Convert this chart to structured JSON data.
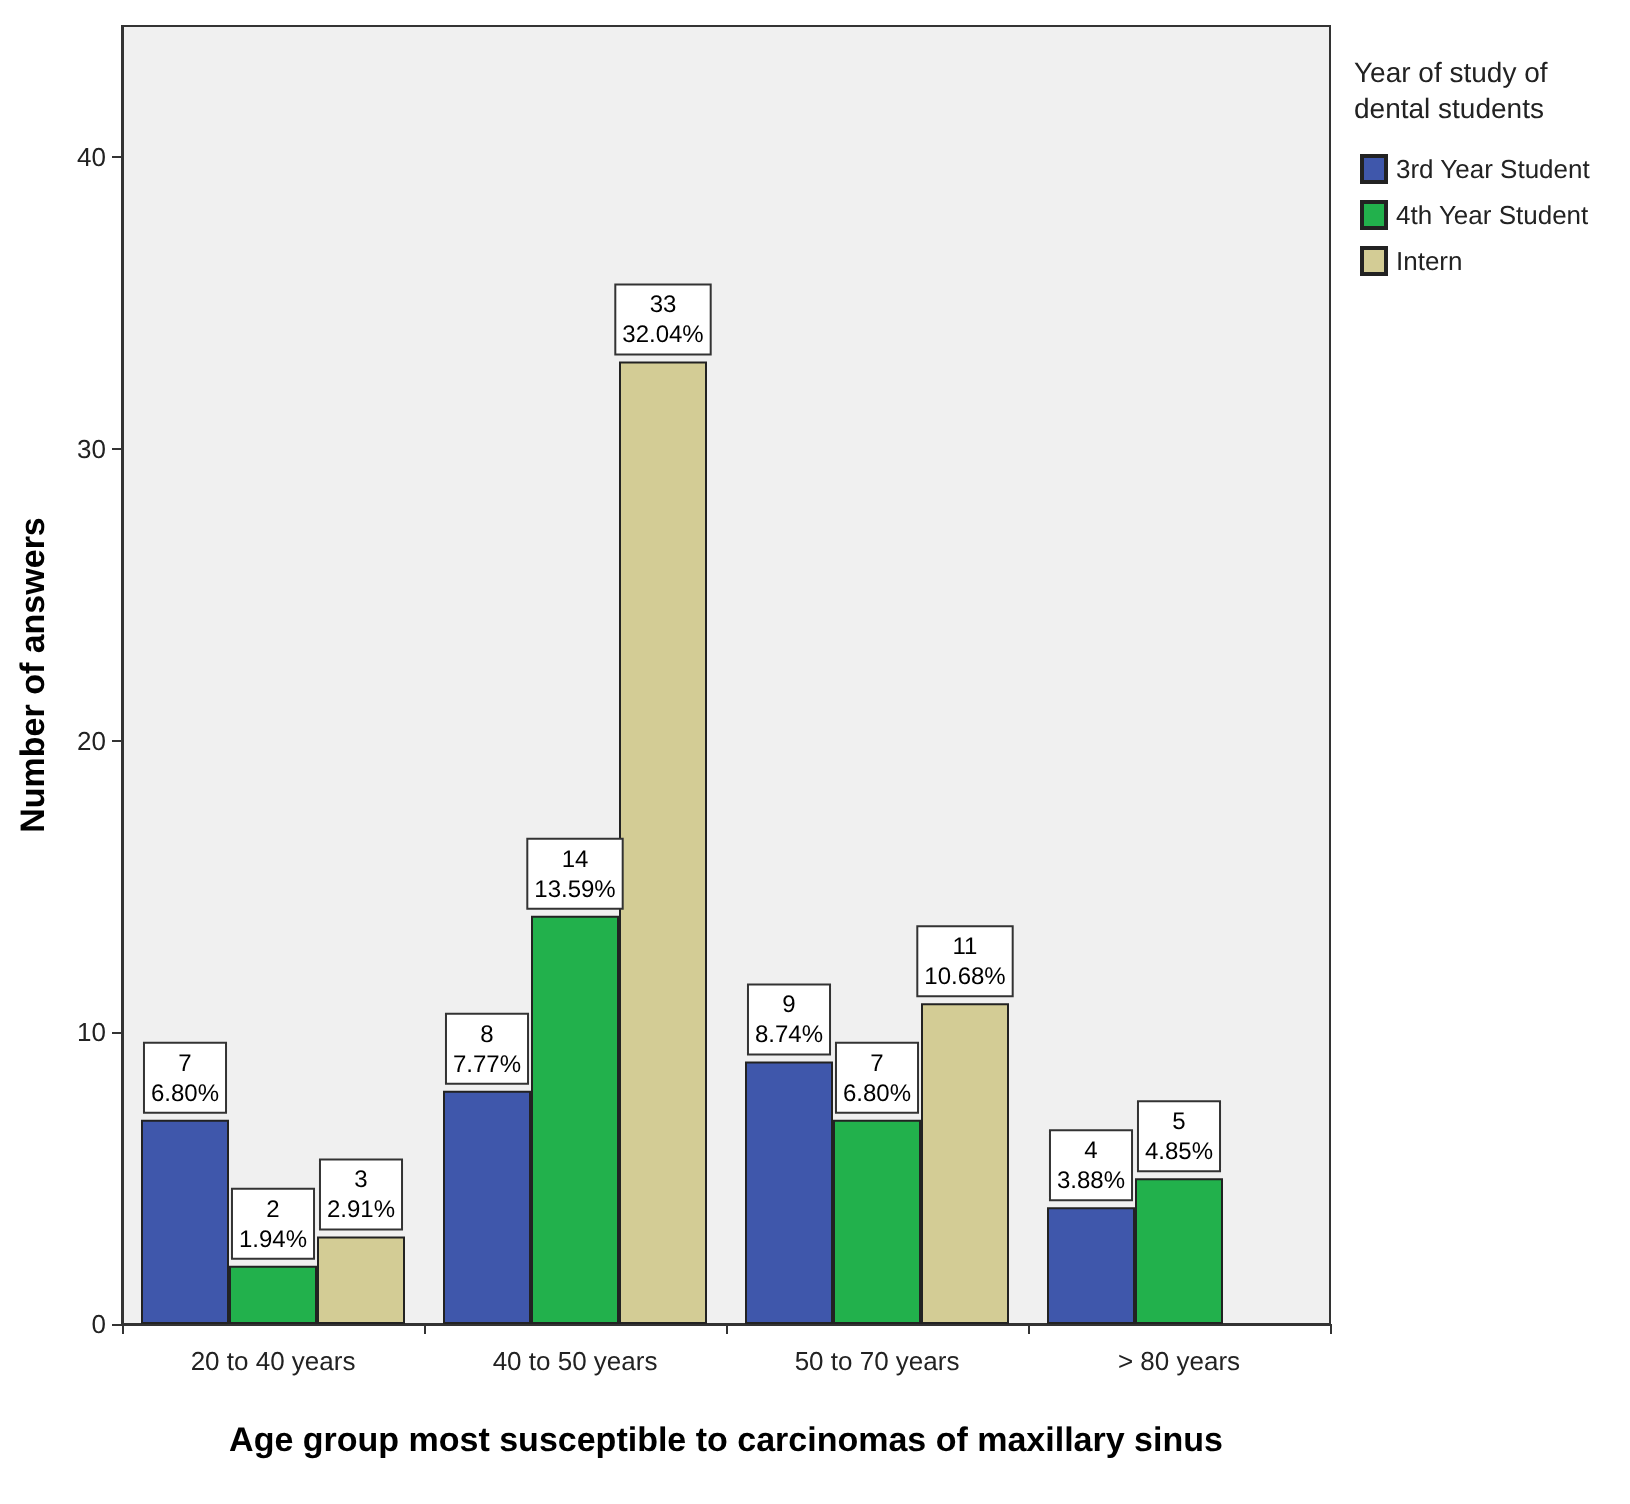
{
  "chart_data": {
    "type": "bar",
    "xlabel": "Age group most susceptible to carcinomas of maxillary sinus",
    "ylabel": "Number of answers",
    "legend_title": "Year of study of dental students",
    "categories": [
      "20 to 40 years",
      "40 to 50 years",
      "50 to 70 years",
      "> 80 years"
    ],
    "series": [
      {
        "name": "3rd Year Student",
        "color": "#3f57ab",
        "values": [
          7,
          8,
          9,
          4
        ],
        "value_labels": [
          "7\n6.80%",
          "8\n7.77%",
          "9\n8.74%",
          "4\n3.88%"
        ]
      },
      {
        "name": "4th Year Student",
        "color": "#22b14c",
        "values": [
          2,
          14,
          7,
          5
        ],
        "value_labels": [
          "2\n1.94%",
          "14\n13.59%",
          "7\n6.80%",
          "5\n4.85%"
        ]
      },
      {
        "name": "Intern",
        "color": "#d3cc95",
        "values": [
          3,
          33,
          11,
          null
        ],
        "value_labels": [
          "3\n2.91%",
          "33\n32.04%",
          "11\n10.68%",
          null
        ]
      }
    ],
    "ylim": [
      0,
      44.5
    ],
    "yticks": [
      0,
      10,
      20,
      30,
      40
    ],
    "grid": false,
    "legend": "right"
  }
}
